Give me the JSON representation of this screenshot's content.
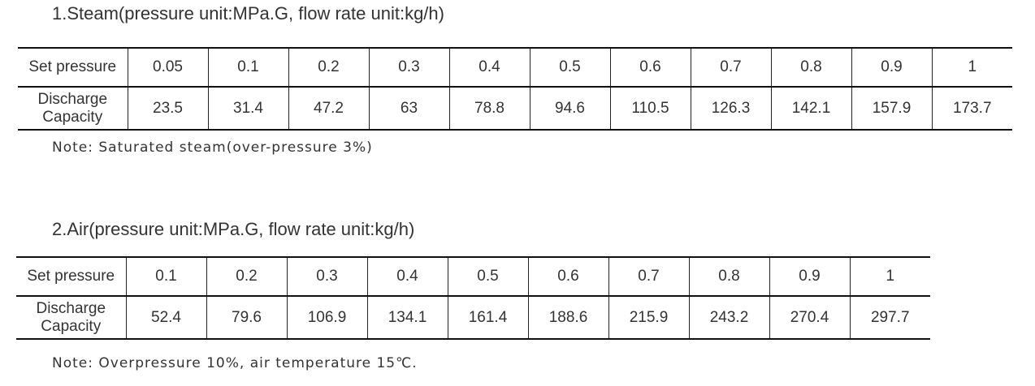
{
  "sections": [
    {
      "title": "1.Steam(pressure unit:MPa.G, flow rate unit:kg/h)",
      "table": {
        "rows": [
          [
            "Set pressure",
            "0.05",
            "0.1",
            "0.2",
            "0.3",
            "0.4",
            "0.5",
            "0.6",
            "0.7",
            "0.8",
            "0.9",
            "1"
          ],
          [
            "Discharge Capacity",
            "23.5",
            "31.4",
            "47.2",
            "63",
            "78.8",
            "94.6",
            "110.5",
            "126.3",
            "142.1",
            "157.9",
            "173.7"
          ]
        ]
      },
      "note": "Note: Saturated steam(over-pressure 3%)"
    },
    {
      "title": "2.Air(pressure unit:MPa.G, flow rate unit:kg/h)",
      "table": {
        "rows": [
          [
            "Set pressure",
            "0.1",
            "0.2",
            "0.3",
            "0.4",
            "0.5",
            "0.6",
            "0.7",
            "0.8",
            "0.9",
            "1"
          ],
          [
            "Discharge Capacity",
            "52.4",
            "79.6",
            "106.9",
            "134.1",
            "161.4",
            "188.6",
            "215.9",
            "243.2",
            "270.4",
            "297.7"
          ]
        ]
      },
      "note": "Note: Overpressure 10%, air temperature 15℃."
    }
  ]
}
